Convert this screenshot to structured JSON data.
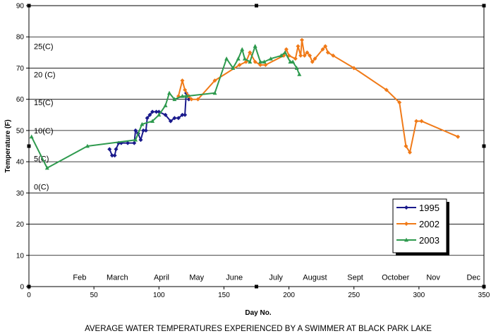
{
  "chart_data": {
    "type": "line",
    "title": "AVERAGE WATER TEMPERATURES EXPERIENCED BY A SWIMMER AT BLACK PARK LAKE",
    "xlabel": "Day No.",
    "ylabel": "Temperature (F)",
    "xlim": [
      0,
      350
    ],
    "ylim": [
      0,
      90
    ],
    "x_ticks": [
      0,
      50,
      100,
      150,
      200,
      250,
      300,
      350
    ],
    "y_ticks": [
      0,
      10,
      20,
      30,
      40,
      50,
      60,
      70,
      80,
      90
    ],
    "grid": "horizontal",
    "legend_position": "bottom-right",
    "month_labels": [
      {
        "text": "Feb",
        "x": 39
      },
      {
        "text": "March",
        "x": 68
      },
      {
        "text": "April",
        "x": 102
      },
      {
        "text": "May",
        "x": 129
      },
      {
        "text": "June",
        "x": 158
      },
      {
        "text": "July",
        "x": 190
      },
      {
        "text": "August",
        "x": 220
      },
      {
        "text": "Sept",
        "x": 251
      },
      {
        "text": "October",
        "x": 282
      },
      {
        "text": "Nov",
        "x": 311
      },
      {
        "text": "Dec",
        "x": 342
      }
    ],
    "celsius_labels": [
      {
        "text": "25(C)",
        "y": 77
      },
      {
        "text": "20 (C)",
        "y": 68
      },
      {
        "text": "15(C)",
        "y": 59
      },
      {
        "text": "10(C)",
        "y": 50
      },
      {
        "text": "5(C)",
        "y": 41
      },
      {
        "text": "0(C)",
        "y": 32
      }
    ],
    "series": [
      {
        "name": "1995",
        "color": "#1a1a8c",
        "marker": "diamond",
        "x": [
          62,
          64,
          66,
          67,
          69,
          71,
          76,
          81,
          82,
          84,
          86,
          88,
          90,
          91,
          93,
          95,
          98,
          100,
          105,
          109,
          112,
          115,
          118,
          120,
          121,
          123,
          123
        ],
        "y": [
          44,
          42,
          42,
          44,
          46,
          46,
          46,
          46,
          50,
          49,
          47,
          50,
          50,
          54,
          55,
          56,
          56,
          56,
          55,
          53,
          54,
          54,
          55,
          55,
          62,
          61,
          60
        ]
      },
      {
        "name": "2002",
        "color": "#f07a18",
        "marker": "diamond",
        "x": [
          115,
          118,
          120,
          123,
          125,
          130,
          143,
          162,
          167,
          170,
          174,
          178,
          182,
          196,
          198,
          200,
          205,
          207,
          209,
          210,
          212,
          214,
          216,
          218,
          220,
          226,
          228,
          230,
          234,
          250,
          275,
          285,
          290,
          293,
          298,
          302,
          330
        ],
        "y": [
          61,
          66,
          63,
          61,
          60,
          60,
          66,
          71,
          72,
          75,
          72,
          71,
          71,
          74,
          76,
          74,
          73,
          77,
          74,
          79,
          74,
          75,
          74,
          72,
          73,
          76,
          77,
          75,
          74,
          70,
          63,
          59,
          45,
          43,
          53,
          53,
          48
        ]
      },
      {
        "name": "2003",
        "color": "#2e9a4e",
        "marker": "triangle",
        "x": [
          2,
          14,
          45,
          82,
          87,
          95,
          100,
          105,
          108,
          112,
          118,
          121,
          143,
          152,
          157,
          161,
          164,
          166,
          170,
          174,
          178,
          181,
          186,
          194,
          197,
          201,
          203,
          206,
          208
        ],
        "y": [
          48,
          38,
          45,
          47,
          52,
          53,
          55,
          58,
          62,
          60,
          61,
          61,
          62,
          73,
          70,
          73,
          76,
          73,
          72,
          77,
          72,
          72,
          73,
          74,
          75,
          72,
          72,
          70,
          68
        ]
      }
    ]
  }
}
